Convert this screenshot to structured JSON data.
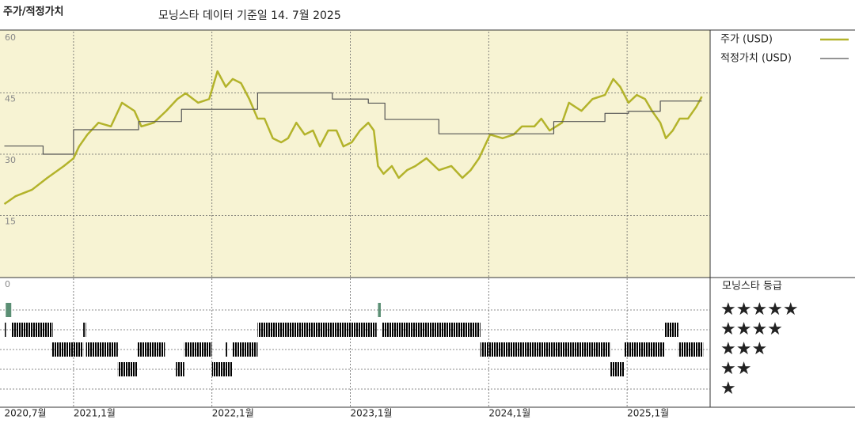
{
  "chart_data": {
    "type": "line",
    "title": "주가/적정가치",
    "subtitle": "모닝스타 데이터 기준일 14. 7월 2025",
    "xlim": [
      2020.5,
      2025.6
    ],
    "xticks": [
      {
        "value": 2020.5,
        "label": "2020,7월"
      },
      {
        "value": 2021,
        "label": "2021,1월"
      },
      {
        "value": 2022,
        "label": "2022,1월"
      },
      {
        "value": 2023,
        "label": "2023,1월"
      },
      {
        "value": 2024,
        "label": "2024,1월"
      },
      {
        "value": 2025,
        "label": "2025,1월"
      }
    ],
    "ylim": [
      0,
      60
    ],
    "yticks": [
      0,
      15,
      30,
      45,
      60
    ],
    "grid": true,
    "legend": "right",
    "series": [
      {
        "name": "주가 (USD)",
        "color": "#b3b32b",
        "step": false,
        "x": [
          2020.5,
          2020.58,
          2020.7,
          2020.81,
          2020.93,
          2021.0,
          2021.04,
          2021.1,
          2021.18,
          2021.27,
          2021.35,
          2021.44,
          2021.49,
          2021.58,
          2021.67,
          2021.75,
          2021.81,
          2021.9,
          2021.98,
          2022.04,
          2022.1,
          2022.15,
          2022.21,
          2022.27,
          2022.33,
          2022.38,
          2022.44,
          2022.5,
          2022.55,
          2022.61,
          2022.67,
          2022.73,
          2022.78,
          2022.84,
          2022.9,
          2022.95,
          2023.01,
          2023.07,
          2023.13,
          2023.17,
          2023.2,
          2023.24,
          2023.3,
          2023.35,
          2023.41,
          2023.47,
          2023.55,
          2023.64,
          2023.73,
          2023.81,
          2023.87,
          2023.93,
          2023.97,
          2024.01,
          2024.1,
          2024.18,
          2024.24,
          2024.33,
          2024.38,
          2024.44,
          2024.53,
          2024.58,
          2024.67,
          2024.75,
          2024.84,
          2024.9,
          2024.95,
          2025.01,
          2025.07,
          2025.13,
          2025.18,
          2025.24,
          2025.28,
          2025.33,
          2025.38,
          2025.44,
          2025.5,
          2025.54
        ],
        "values": [
          17.8,
          19.7,
          21.3,
          24.2,
          27.1,
          29.0,
          31.9,
          34.8,
          37.7,
          36.8,
          42.6,
          40.6,
          36.8,
          37.7,
          40.6,
          43.5,
          44.9,
          42.6,
          43.5,
          50.3,
          46.5,
          48.4,
          47.4,
          43.5,
          38.7,
          38.7,
          33.9,
          32.9,
          33.9,
          37.7,
          34.8,
          35.8,
          31.9,
          35.8,
          35.8,
          31.9,
          32.9,
          35.8,
          37.7,
          35.8,
          27.1,
          25.2,
          27.1,
          24.2,
          26.1,
          27.1,
          29.0,
          26.1,
          27.1,
          24.2,
          26.1,
          29.0,
          31.9,
          34.8,
          33.9,
          34.8,
          36.8,
          36.8,
          38.7,
          35.8,
          37.7,
          42.6,
          40.6,
          43.5,
          44.5,
          48.4,
          46.5,
          42.6,
          44.5,
          43.5,
          40.6,
          37.7,
          33.9,
          35.8,
          38.7,
          38.7,
          41.6,
          44.1
        ]
      },
      {
        "name": "적정가치 (USD)",
        "color": "#555555",
        "step": true,
        "x": [
          2020.5,
          2020.78,
          2021.0,
          2021.47,
          2021.78,
          2022.33,
          2022.87,
          2023.13,
          2023.25,
          2023.64,
          2024.47,
          2024.84,
          2025.01,
          2025.24,
          2025.54
        ],
        "values": [
          32,
          30,
          36,
          38,
          41,
          45,
          43.5,
          42.5,
          38.5,
          35,
          38,
          40,
          40.5,
          43,
          43
        ]
      }
    ],
    "ratings": {
      "title": "모닝스타 등급",
      "labels": [
        "★★★★★",
        "★★★★",
        "★★★",
        "★★",
        "★"
      ],
      "bar_color": "#2b2b2b",
      "top_rating_color": "#5b8f74",
      "periods": [
        {
          "from": 2020.51,
          "to": 2020.55,
          "stars": 5
        },
        {
          "from": 2023.2,
          "to": 2023.22,
          "stars": 5
        },
        {
          "from": 2020.5,
          "to": 2020.51,
          "stars": 4
        },
        {
          "from": 2020.55,
          "to": 2020.85,
          "stars": 4
        },
        {
          "from": 2021.07,
          "to": 2021.09,
          "stars": 4
        },
        {
          "from": 2022.33,
          "to": 2023.19,
          "stars": 4
        },
        {
          "from": 2023.23,
          "to": 2023.94,
          "stars": 4
        },
        {
          "from": 2025.27,
          "to": 2025.37,
          "stars": 4
        },
        {
          "from": 2020.84,
          "to": 2021.07,
          "stars": 3
        },
        {
          "from": 2021.09,
          "to": 2021.32,
          "stars": 3
        },
        {
          "from": 2021.46,
          "to": 2021.66,
          "stars": 3
        },
        {
          "from": 2021.8,
          "to": 2022.0,
          "stars": 3
        },
        {
          "from": 2022.1,
          "to": 2022.11,
          "stars": 3
        },
        {
          "from": 2022.15,
          "to": 2022.33,
          "stars": 3
        },
        {
          "from": 2023.94,
          "to": 2024.88,
          "stars": 3
        },
        {
          "from": 2024.98,
          "to": 2025.27,
          "stars": 3
        },
        {
          "from": 2025.37,
          "to": 2025.55,
          "stars": 3
        },
        {
          "from": 2021.32,
          "to": 2021.46,
          "stars": 2
        },
        {
          "from": 2021.74,
          "to": 2021.8,
          "stars": 2
        },
        {
          "from": 2022.0,
          "to": 2022.15,
          "stars": 2
        },
        {
          "from": 2024.88,
          "to": 2024.98,
          "stars": 2
        }
      ]
    }
  }
}
